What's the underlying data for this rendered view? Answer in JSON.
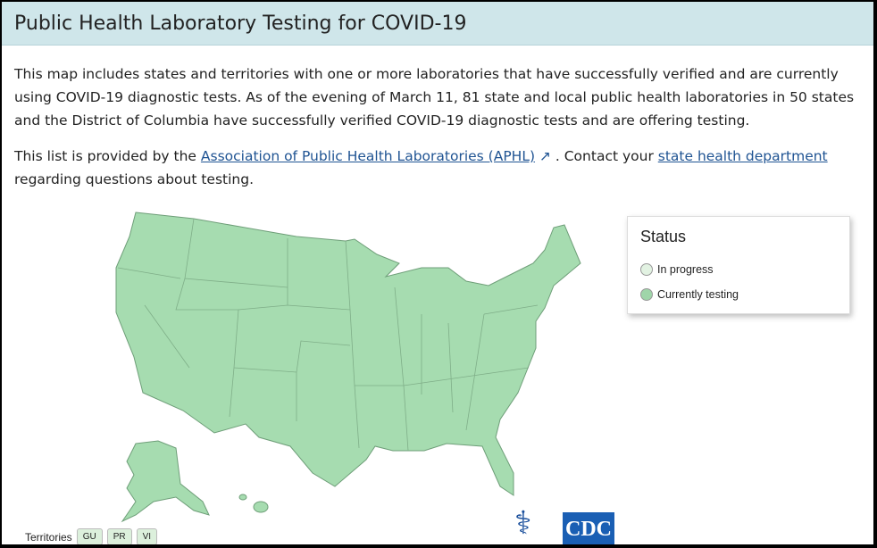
{
  "title": "Public Health Laboratory Testing for COVID-19",
  "intro": "This map includes states and territories with one or more laboratories that have successfully verified and are currently using COVID-19 diagnostic tests.  As of the evening of March 11, 81 state and local public health laboratories in 50 states and the District of Columbia have successfully verified COVID-19 diagnostic tests and are offering testing.",
  "list": {
    "prefix": "This list is provided by the ",
    "aphl_link": "Association of Public Health Laboratories (APHL)",
    "middle": " . Contact your ",
    "state_link": "state health department",
    "suffix": " regarding questions about testing."
  },
  "legend": {
    "title": "Status",
    "items": [
      {
        "label": "In progress",
        "color": "#e2f2e2"
      },
      {
        "label": "Currently testing",
        "color": "#9fd5a9"
      }
    ]
  },
  "map": {
    "fill_color": "#a6dcb0",
    "stroke_color": "#6e9e78"
  },
  "territories": {
    "label": "Territories",
    "items": [
      "GU",
      "PR",
      "VI"
    ]
  },
  "logo": "CDC"
}
